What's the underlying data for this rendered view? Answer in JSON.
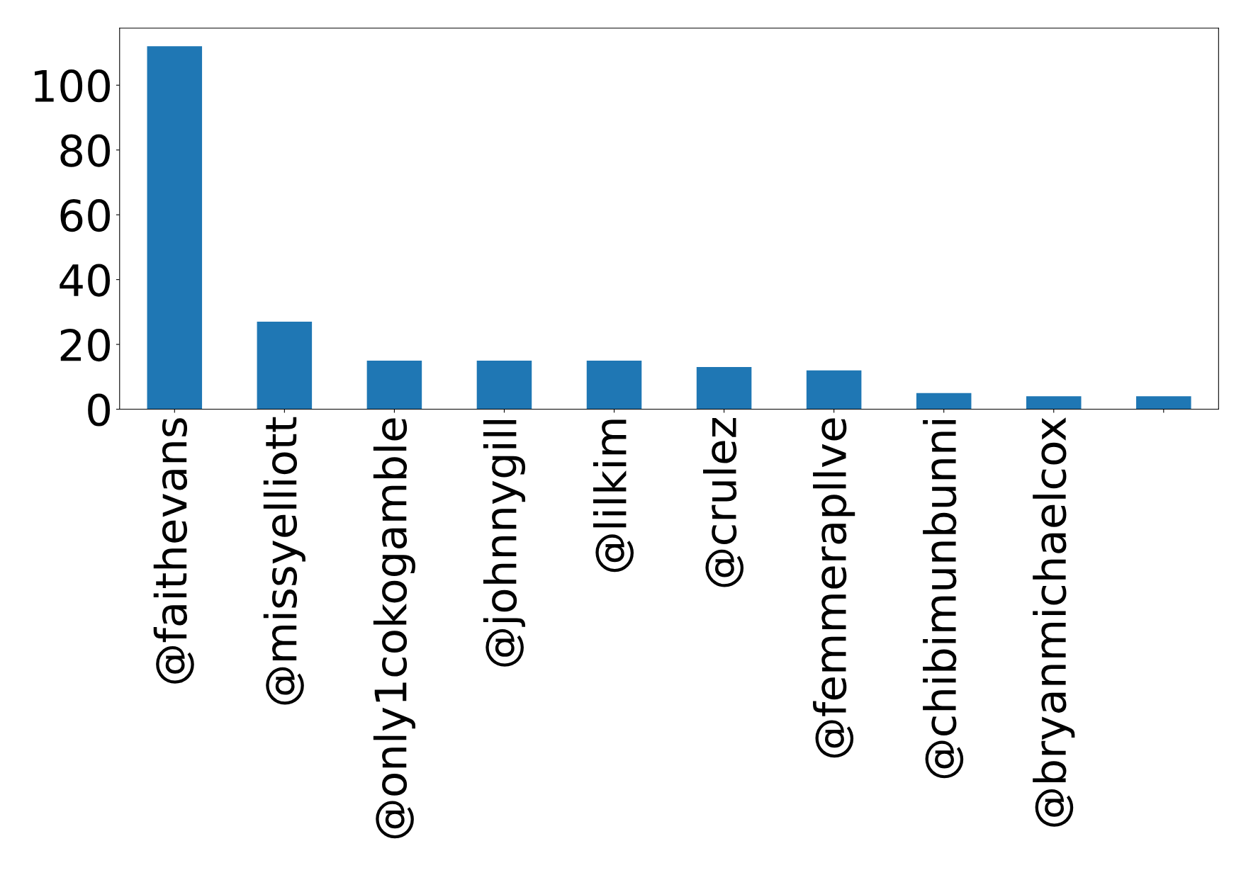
{
  "chart_data": {
    "type": "bar",
    "categories": [
      "@faithevans",
      "@missyelliott",
      "@only1cokogamble",
      "@johnnygill",
      "@lilkim",
      "@crulez",
      "@femmerapllve",
      "@chibimunbunni",
      "@bryanmichaelcox",
      null
    ],
    "values": [
      112,
      27,
      15,
      15,
      15,
      13,
      12,
      5,
      4,
      4
    ],
    "color": "#1f77b4",
    "ylim": [
      0,
      117.6
    ],
    "yticks": [
      0,
      20,
      40,
      60,
      80,
      100
    ],
    "grid": false,
    "legend": false
  }
}
